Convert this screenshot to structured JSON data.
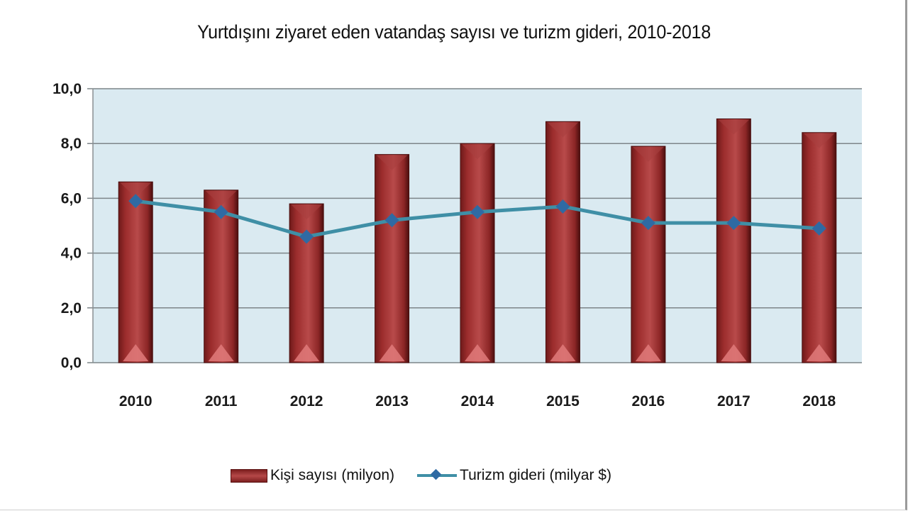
{
  "chart_data": {
    "type": "bar",
    "title": "Yurtdışını ziyaret eden vatandaş sayısı ve turizm gideri, 2010-2018",
    "xlabel": "",
    "ylabel": "",
    "ylim": [
      0,
      10
    ],
    "yticks": [
      "0,0",
      "2,0",
      "4,0",
      "6,0",
      "8,0",
      "10,0"
    ],
    "grid": true,
    "legend_position": "bottom",
    "categories": [
      "2010",
      "2011",
      "2012",
      "2013",
      "2014",
      "2015",
      "2016",
      "2017",
      "2018"
    ],
    "series": [
      {
        "name": "Kişi sayısı (milyon)",
        "type": "bar",
        "color": "#9b2c2c",
        "values": [
          6.6,
          6.3,
          5.8,
          7.6,
          8.0,
          8.8,
          7.9,
          8.9,
          8.4
        ]
      },
      {
        "name": "Turizm  gideri (milyar $)",
        "type": "line",
        "color": "#3f8fa6",
        "marker_color": "#2f6aa3",
        "values": [
          5.9,
          5.5,
          4.6,
          5.2,
          5.5,
          5.7,
          5.1,
          5.1,
          4.9
        ]
      }
    ]
  },
  "legend": {
    "bar_label": "Kişi sayısı (milyon)",
    "line_label": "Turizm  gideri (milyar $)"
  }
}
